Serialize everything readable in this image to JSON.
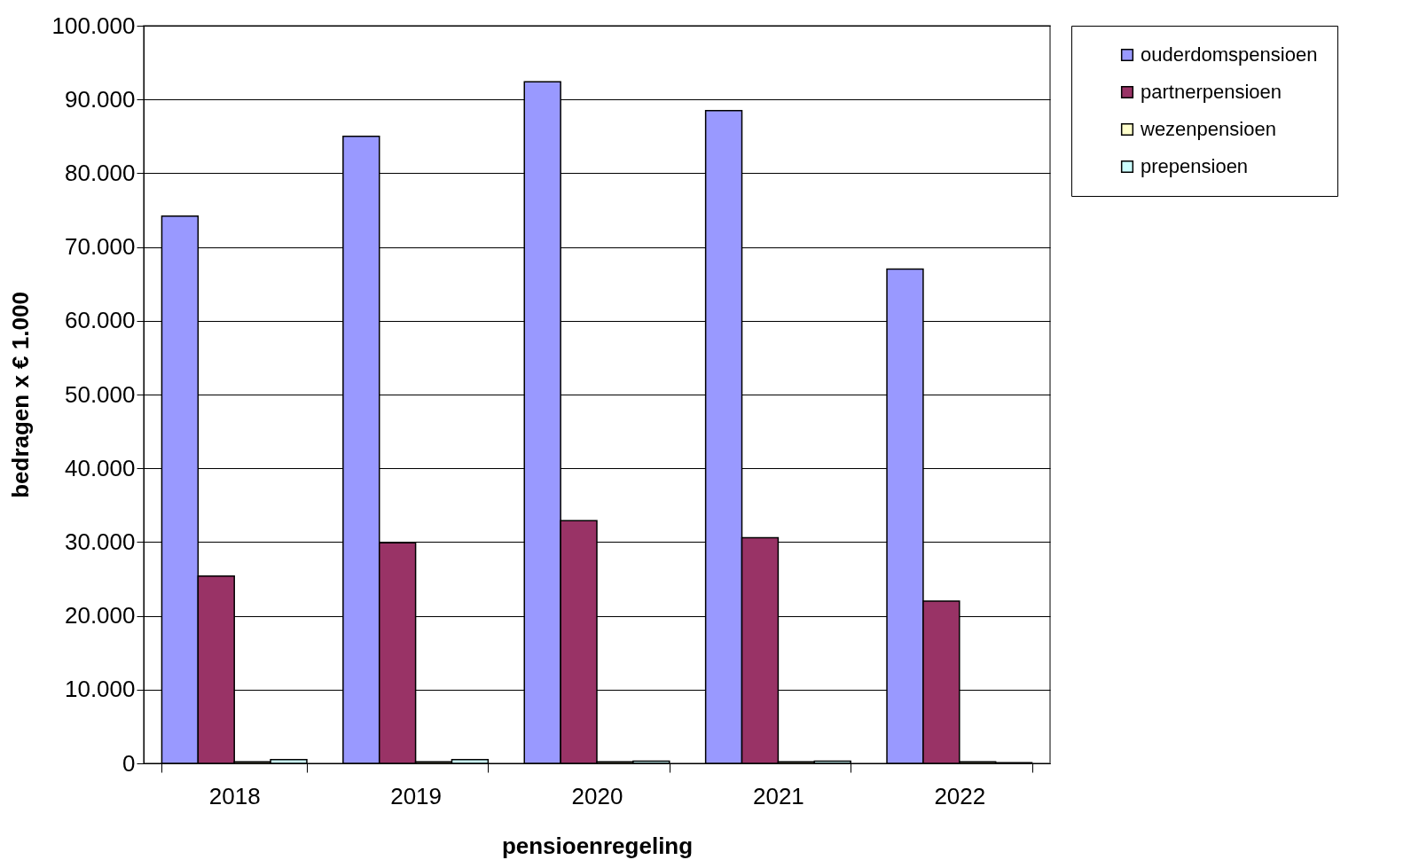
{
  "chart_data": {
    "type": "bar",
    "xlabel": "pensioenregeling",
    "ylabel": "bedragen x € 1.000",
    "categories": [
      "2018",
      "2019",
      "2020",
      "2021",
      "2022"
    ],
    "series": [
      {
        "name": "ouderdomspensioen",
        "color": "#9999ff",
        "values": [
          74200,
          85000,
          92400,
          88500,
          67000
        ]
      },
      {
        "name": "partnerpensioen",
        "color": "#993366",
        "values": [
          25400,
          29900,
          32900,
          30600,
          22000
        ]
      },
      {
        "name": "wezenpensioen",
        "color": "#ffffcc",
        "values": [
          200,
          200,
          200,
          200,
          200
        ]
      },
      {
        "name": "prepensioen",
        "color": "#ccffff",
        "values": [
          500,
          500,
          300,
          300,
          100
        ]
      }
    ],
    "ylim": [
      0,
      100000
    ],
    "yticks": [
      {
        "value": 0,
        "label": "0"
      },
      {
        "value": 10000,
        "label": "10.000"
      },
      {
        "value": 20000,
        "label": "20.000"
      },
      {
        "value": 30000,
        "label": "30.000"
      },
      {
        "value": 40000,
        "label": "40.000"
      },
      {
        "value": 50000,
        "label": "50.000"
      },
      {
        "value": 60000,
        "label": "60.000"
      },
      {
        "value": 70000,
        "label": "70.000"
      },
      {
        "value": 80000,
        "label": "80.000"
      },
      {
        "value": 90000,
        "label": "90.000"
      },
      {
        "value": 100000,
        "label": "100.000"
      }
    ],
    "grid": "y",
    "legend": "right"
  }
}
